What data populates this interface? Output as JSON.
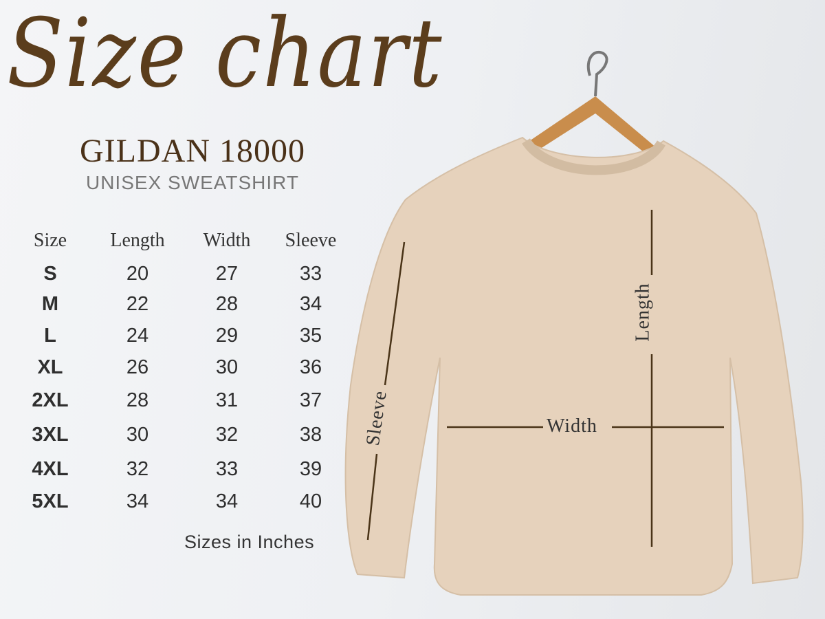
{
  "title": "Size chart",
  "brand": "GILDAN 18000",
  "subtitle": "UNISEX SWEATSHIRT",
  "table": {
    "headers": [
      "Size",
      "Length",
      "Width",
      "Sleeve"
    ],
    "rows": [
      [
        "S",
        "20",
        "27",
        "33"
      ],
      [
        "M",
        "22",
        "28",
        "34"
      ],
      [
        "L",
        "24",
        "29",
        "35"
      ],
      [
        "XL",
        "26",
        "30",
        "36"
      ],
      [
        "2XL",
        "28",
        "31",
        "37"
      ],
      [
        "3XL",
        "30",
        "32",
        "38"
      ],
      [
        "4XL",
        "32",
        "33",
        "39"
      ],
      [
        "5XL",
        "34",
        "34",
        "40"
      ]
    ]
  },
  "note": "Sizes in Inches",
  "measurements": {
    "length": "Length",
    "width": "Width",
    "sleeve": "Sleeve"
  },
  "colors": {
    "brand": "#5b3d1c",
    "garment": "#e6d2bc",
    "line": "#4a3418"
  }
}
